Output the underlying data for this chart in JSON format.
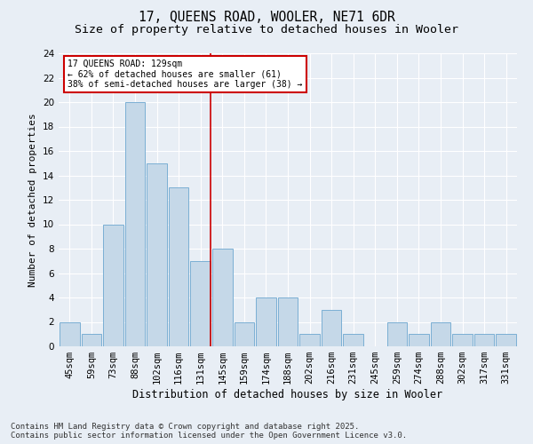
{
  "title": "17, QUEENS ROAD, WOOLER, NE71 6DR",
  "subtitle": "Size of property relative to detached houses in Wooler",
  "xlabel": "Distribution of detached houses by size in Wooler",
  "ylabel": "Number of detached properties",
  "categories": [
    "45sqm",
    "59sqm",
    "73sqm",
    "88sqm",
    "102sqm",
    "116sqm",
    "131sqm",
    "145sqm",
    "159sqm",
    "174sqm",
    "188sqm",
    "202sqm",
    "216sqm",
    "231sqm",
    "245sqm",
    "259sqm",
    "274sqm",
    "288sqm",
    "302sqm",
    "317sqm",
    "331sqm"
  ],
  "values": [
    2,
    1,
    10,
    20,
    15,
    13,
    7,
    8,
    2,
    4,
    4,
    1,
    3,
    1,
    0,
    2,
    1,
    2,
    1,
    1,
    1
  ],
  "bar_color": "#c5d8e8",
  "bar_edgecolor": "#7bafd4",
  "property_line_index": 6,
  "property_line_color": "#cc0000",
  "annotation_line1": "17 QUEENS ROAD: 129sqm",
  "annotation_line2": "← 62% of detached houses are smaller (61)",
  "annotation_line3": "38% of semi-detached houses are larger (38) →",
  "annotation_box_color": "#cc0000",
  "ylim": [
    0,
    24
  ],
  "yticks": [
    0,
    2,
    4,
    6,
    8,
    10,
    12,
    14,
    16,
    18,
    20,
    22,
    24
  ],
  "bg_color": "#e8eef5",
  "plot_bg_color": "#e8eef5",
  "footer": "Contains HM Land Registry data © Crown copyright and database right 2025.\nContains public sector information licensed under the Open Government Licence v3.0.",
  "title_fontsize": 10.5,
  "subtitle_fontsize": 9.5,
  "xlabel_fontsize": 8.5,
  "ylabel_fontsize": 8,
  "tick_fontsize": 7.5,
  "footer_fontsize": 6.5
}
